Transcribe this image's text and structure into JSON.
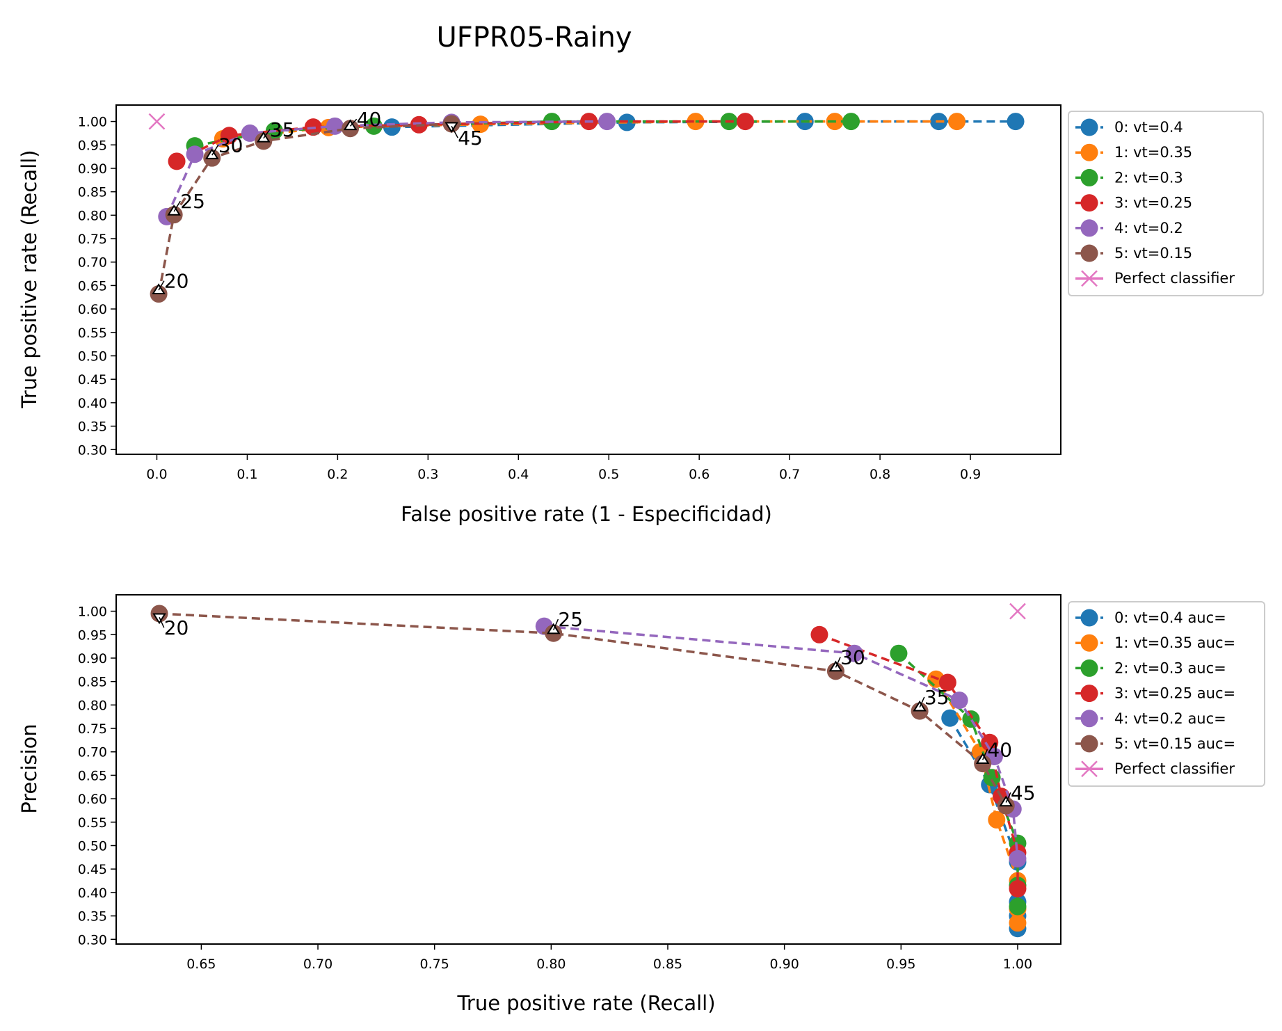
{
  "figure": {
    "title": "UFPR05-Rainy"
  },
  "colors": {
    "s0": "#1f77b4",
    "s1": "#ff7f0e",
    "s2": "#2ca02c",
    "s3": "#d62728",
    "s4": "#9467bd",
    "s5": "#8c564b",
    "perfect": "#e377c2"
  },
  "chart_data": [
    {
      "type": "line",
      "subtype": "roc",
      "title": "",
      "xlabel": "False positive rate (1 - Especificidad)",
      "ylabel": "True positive rate (Recall)",
      "xlim": [
        -0.045,
        1.0
      ],
      "ylim": [
        0.29,
        1.035
      ],
      "xticks": [
        "0.0",
        "0.1",
        "0.2",
        "0.3",
        "0.4",
        "0.5",
        "0.6",
        "0.7",
        "0.8",
        "0.9"
      ],
      "yticks": [
        "0.30",
        "0.35",
        "0.40",
        "0.45",
        "0.50",
        "0.55",
        "0.60",
        "0.65",
        "0.70",
        "0.75",
        "0.80",
        "0.85",
        "0.90",
        "0.95",
        "1.00"
      ],
      "legend_position": "outside right, top",
      "legend": [
        "0: vt=0.4",
        "1: vt=0.35",
        "2: vt=0.3",
        "3: vt=0.25",
        "4: vt=0.2",
        "5: vt=0.15",
        "Perfect classifier"
      ],
      "series": [
        {
          "name": "0: vt=0.4",
          "color_key": "s0",
          "x": [
            0.26,
            0.52,
            0.717,
            0.865,
            0.95
          ],
          "y": [
            0.988,
            0.998,
            1.0,
            1.0,
            1.0
          ]
        },
        {
          "name": "1: vt=0.35",
          "color_key": "s1",
          "x": [
            0.073,
            0.19,
            0.358,
            0.596,
            0.75,
            0.885
          ],
          "y": [
            0.963,
            0.987,
            0.994,
            1.0,
            1.0,
            1.0
          ]
        },
        {
          "name": "2: vt=0.3",
          "color_key": "s2",
          "x": [
            0.042,
            0.13,
            0.24,
            0.437,
            0.633,
            0.768
          ],
          "y": [
            0.948,
            0.98,
            0.99,
            1.0,
            1.0,
            1.0
          ]
        },
        {
          "name": "3: vt=0.25",
          "color_key": "s3",
          "x": [
            0.022,
            0.08,
            0.173,
            0.29,
            0.478,
            0.651
          ],
          "y": [
            0.915,
            0.97,
            0.988,
            0.993,
            1.0,
            1.0
          ]
        },
        {
          "name": "4: vt=0.2",
          "color_key": "s4",
          "x": [
            0.011,
            0.042,
            0.103,
            0.197,
            0.326,
            0.498
          ],
          "y": [
            0.797,
            0.93,
            0.975,
            0.99,
            0.998,
            1.0
          ]
        },
        {
          "name": "5: vt=0.15",
          "color_key": "s5",
          "x": [
            0.002,
            0.019,
            0.061,
            0.118,
            0.214,
            0.326
          ],
          "y": [
            0.632,
            0.801,
            0.922,
            0.958,
            0.985,
            0.995
          ]
        },
        {
          "name": "Perfect classifier",
          "color_key": "perfect",
          "marker": "x",
          "x": [
            0.0
          ],
          "y": [
            1.0
          ]
        }
      ],
      "annotations": [
        {
          "text": "20",
          "x": 0.002,
          "y": 0.64,
          "tx": 0.008,
          "ty": 0.66,
          "arrow": "up"
        },
        {
          "text": "25",
          "x": 0.019,
          "y": 0.808,
          "tx": 0.026,
          "ty": 0.83,
          "arrow": "up"
        },
        {
          "text": "30",
          "x": 0.061,
          "y": 0.928,
          "tx": 0.068,
          "ty": 0.95,
          "arrow": "up"
        },
        {
          "text": "35",
          "x": 0.118,
          "y": 0.964,
          "tx": 0.125,
          "ty": 0.983,
          "arrow": "up"
        },
        {
          "text": "40",
          "x": 0.214,
          "y": 0.99,
          "tx": 0.221,
          "ty": 1.005,
          "arrow": "up"
        },
        {
          "text": "45",
          "x": 0.326,
          "y": 0.99,
          "tx": 0.333,
          "ty": 0.965,
          "arrow": "down"
        }
      ]
    },
    {
      "type": "line",
      "subtype": "precision-recall",
      "title": "",
      "xlabel": "True positive rate (Recall)",
      "ylabel": "Precision",
      "xlim": [
        0.6135,
        1.0185
      ],
      "ylim": [
        0.29,
        1.035
      ],
      "xticks": [
        "0.65",
        "0.70",
        "0.75",
        "0.80",
        "0.85",
        "0.90",
        "0.95",
        "1.00"
      ],
      "yticks": [
        "0.30",
        "0.35",
        "0.40",
        "0.45",
        "0.50",
        "0.55",
        "0.60",
        "0.65",
        "0.70",
        "0.75",
        "0.80",
        "0.85",
        "0.90",
        "0.95",
        "1.00"
      ],
      "legend_position": "outside right, top",
      "legend": [
        "0: vt=0.4 auc=",
        "1: vt=0.35 auc=",
        "2: vt=0.3 auc=",
        "3: vt=0.25 auc=",
        "4: vt=0.2 auc=",
        "5: vt=0.15 auc=",
        "Perfect classifier"
      ],
      "series": [
        {
          "name": "0: vt=0.4 auc=",
          "color_key": "s0",
          "x": [
            0.971,
            0.988,
            1.0,
            1.0,
            1.0,
            1.0
          ],
          "y": [
            0.772,
            0.63,
            0.465,
            0.38,
            0.35,
            0.323
          ]
        },
        {
          "name": "1: vt=0.35 auc=",
          "color_key": "s1",
          "x": [
            0.965,
            0.984,
            0.991,
            1.0,
            1.0,
            1.0
          ],
          "y": [
            0.855,
            0.7,
            0.555,
            0.425,
            0.365,
            0.335
          ]
        },
        {
          "name": "2: vt=0.3 auc=",
          "color_key": "s2",
          "x": [
            0.949,
            0.98,
            0.989,
            1.0,
            1.0,
            1.0
          ],
          "y": [
            0.91,
            0.77,
            0.645,
            0.505,
            0.415,
            0.37
          ]
        },
        {
          "name": "3: vt=0.25 auc=",
          "color_key": "s3",
          "x": [
            0.915,
            0.97,
            0.988,
            0.993,
            1.0,
            1.0
          ],
          "y": [
            0.95,
            0.848,
            0.72,
            0.605,
            0.485,
            0.408
          ]
        },
        {
          "name": "4: vt=0.2 auc=",
          "color_key": "s4",
          "x": [
            0.797,
            0.93,
            0.975,
            0.99,
            0.998,
            1.0
          ],
          "y": [
            0.968,
            0.91,
            0.81,
            0.69,
            0.578,
            0.472
          ]
        },
        {
          "name": "5: vt=0.15 auc=",
          "color_key": "s5",
          "x": [
            0.632,
            0.801,
            0.922,
            0.958,
            0.985,
            0.995
          ],
          "y": [
            0.995,
            0.953,
            0.872,
            0.787,
            0.675,
            0.585
          ]
        },
        {
          "name": "Perfect classifier",
          "color_key": "perfect",
          "marker": "x",
          "x": [
            1.0
          ],
          "y": [
            1.0
          ]
        }
      ],
      "annotations": [
        {
          "text": "20",
          "x": 0.632,
          "y": 0.987,
          "tx": 0.634,
          "ty": 0.965,
          "arrow": "down"
        },
        {
          "text": "25",
          "x": 0.801,
          "y": 0.96,
          "tx": 0.803,
          "ty": 0.983,
          "arrow": "up"
        },
        {
          "text": "30",
          "x": 0.922,
          "y": 0.88,
          "tx": 0.924,
          "ty": 0.902,
          "arrow": "up"
        },
        {
          "text": "35",
          "x": 0.958,
          "y": 0.795,
          "tx": 0.96,
          "ty": 0.817,
          "arrow": "up"
        },
        {
          "text": "40",
          "x": 0.985,
          "y": 0.683,
          "tx": 0.987,
          "ty": 0.705,
          "arrow": "up"
        },
        {
          "text": "45",
          "x": 0.995,
          "y": 0.592,
          "tx": 0.997,
          "ty": 0.613,
          "arrow": "up"
        }
      ]
    }
  ]
}
